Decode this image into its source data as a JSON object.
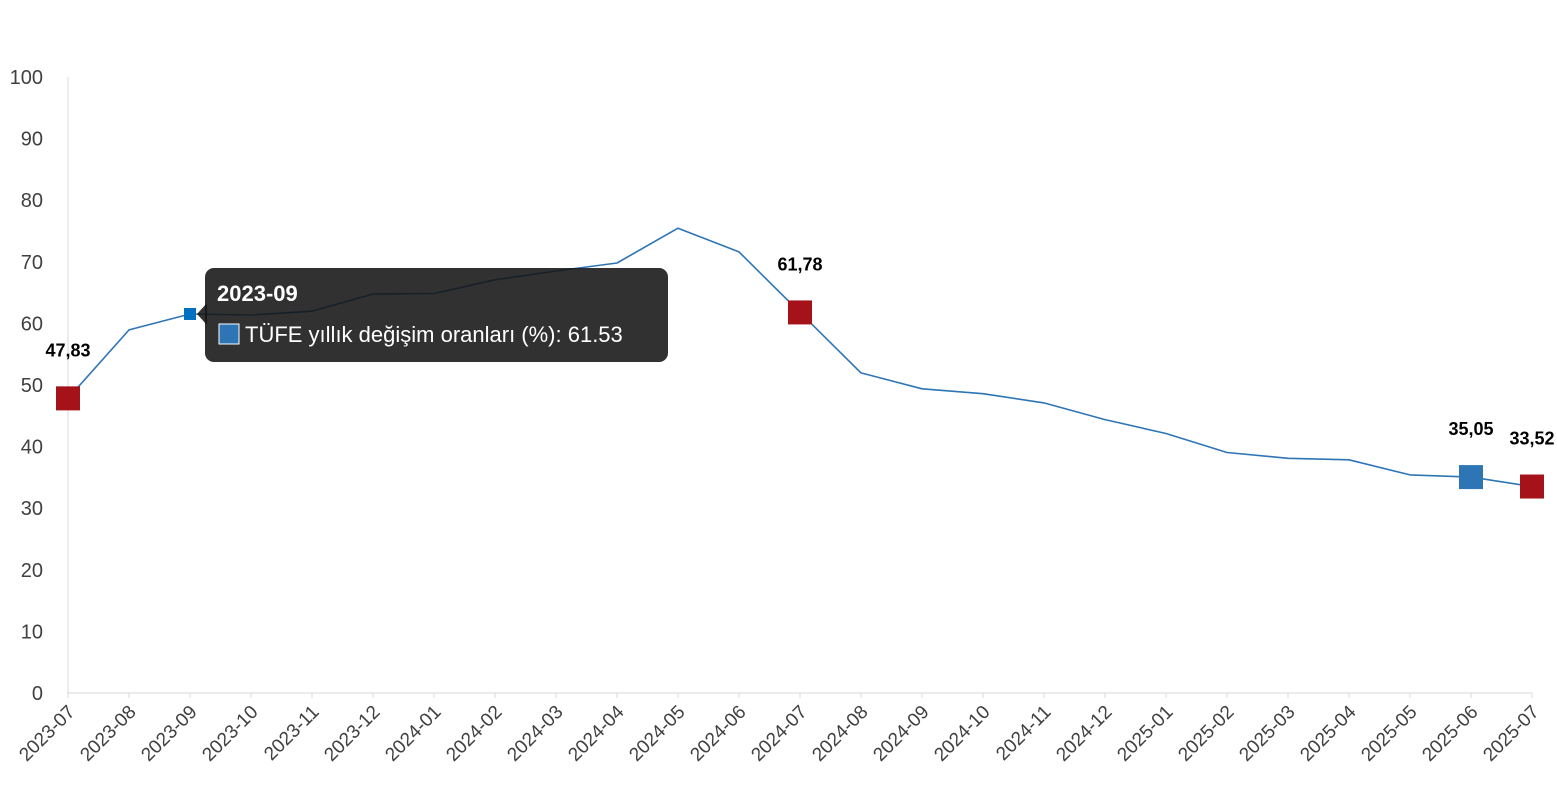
{
  "chart_data": {
    "type": "line",
    "x": [
      "2023-07",
      "2023-08",
      "2023-09",
      "2023-10",
      "2023-11",
      "2023-12",
      "2024-01",
      "2024-02",
      "2024-03",
      "2024-04",
      "2024-05",
      "2024-06",
      "2024-07",
      "2024-08",
      "2024-09",
      "2024-10",
      "2024-11",
      "2024-12",
      "2025-01",
      "2025-02",
      "2025-03",
      "2025-04",
      "2025-05",
      "2025-06",
      "2025-07"
    ],
    "series": [
      {
        "name": "TÜFE yıllık değişim oranları (%)",
        "values": [
          47.83,
          58.94,
          61.53,
          61.36,
          61.98,
          64.77,
          64.86,
          67.07,
          68.5,
          69.8,
          75.45,
          71.6,
          61.78,
          51.97,
          49.38,
          48.58,
          47.09,
          44.38,
          42.12,
          39.05,
          38.1,
          37.86,
          35.41,
          35.05,
          33.52
        ],
        "color": "#2e75b6"
      }
    ],
    "yticks": [
      "0",
      "10",
      "20",
      "30",
      "40",
      "50",
      "60",
      "70",
      "80",
      "90",
      "100"
    ],
    "ylim": [
      0,
      100
    ],
    "grid": false,
    "legend": "none",
    "markers": [
      {
        "index": 0,
        "label": "47,83",
        "color": "#a6121a"
      },
      {
        "index": 12,
        "label": "61,78",
        "color": "#a6121a"
      },
      {
        "index": 23,
        "label": "35,05",
        "color": "#2e75b6"
      },
      {
        "index": 24,
        "label": "33,52",
        "color": "#a6121a"
      }
    ],
    "tooltip": {
      "title": "2023-09",
      "text": "TÜFE yıllık değişim oranları (%): 61.53",
      "index": 2,
      "swatch_color": "#2e75b6",
      "hover_color": "#0070c0"
    }
  }
}
